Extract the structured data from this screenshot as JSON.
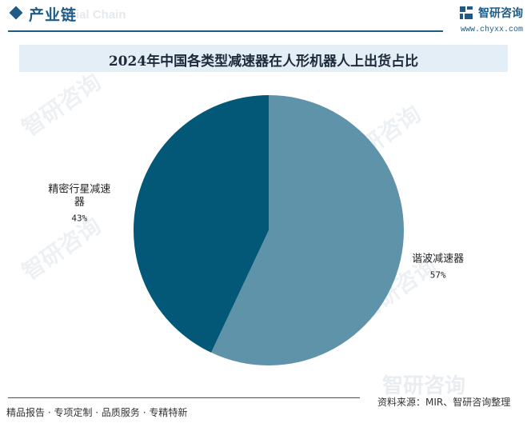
{
  "header": {
    "section_title": "产业链",
    "section_subtitle": "ial Chain",
    "brand_name": "智研咨询",
    "brand_url": "www.chyxx.com",
    "watermark_text": "智研咨询"
  },
  "colors": {
    "accent": "#1f5b86",
    "slice_dark": "#035878",
    "slice_light": "#5f93a9",
    "title_band": "#e4eef7"
  },
  "chart_data": {
    "type": "pie",
    "title": "2024年中国各类型减速器在人形机器人上出货占比",
    "slices": [
      {
        "name": "谐波减速器",
        "value": 57,
        "label": "57%",
        "color": "#5f93a9"
      },
      {
        "name": "精密行星减速器",
        "value": 43,
        "label": "43%",
        "color": "#035878"
      }
    ],
    "start_angle": "12 o'clock",
    "direction": "clockwise",
    "legend": "none"
  },
  "footer": {
    "tagline": "精品报告 · 专项定制 · 品质服务 · 专精特新",
    "source": "资料来源：MIR、智研咨询整理"
  }
}
